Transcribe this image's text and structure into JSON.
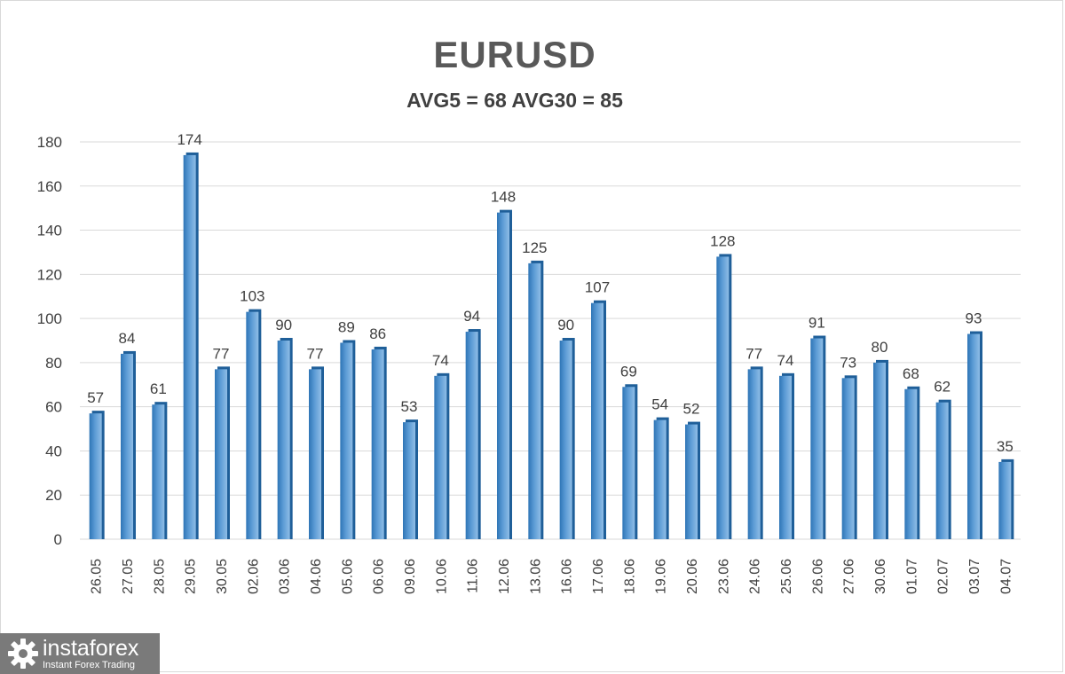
{
  "chart_data": {
    "type": "bar",
    "title": "EURUSD",
    "subtitle": "AVG5 = 68 AVG30 = 85",
    "categories": [
      "26.05",
      "27.05",
      "28.05",
      "29.05",
      "30.05",
      "02.06",
      "03.06",
      "04.06",
      "05.06",
      "06.06",
      "09.06",
      "10.06",
      "11.06",
      "12.06",
      "13.06",
      "16.06",
      "17.06",
      "18.06",
      "19.06",
      "20.06",
      "23.06",
      "24.06",
      "25.06",
      "26.06",
      "27.06",
      "30.06",
      "01.07",
      "02.07",
      "03.07",
      "04.07"
    ],
    "values": [
      57,
      84,
      61,
      174,
      77,
      103,
      90,
      77,
      89,
      86,
      53,
      74,
      94,
      148,
      125,
      90,
      107,
      69,
      54,
      52,
      128,
      77,
      74,
      91,
      73,
      80,
      68,
      62,
      93,
      35
    ],
    "ylim": [
      0,
      180
    ],
    "yticks": [
      0,
      20,
      40,
      60,
      80,
      100,
      120,
      140,
      160,
      180
    ],
    "grid": true,
    "data_labels": true,
    "colors": {
      "bar": "#5b9bd5",
      "bar_dark": "#2e75b6",
      "grid": "#d9d9d9",
      "text": "#404040"
    }
  },
  "logo": {
    "brand": "instaforex",
    "tagline": "Instant Forex Trading"
  }
}
